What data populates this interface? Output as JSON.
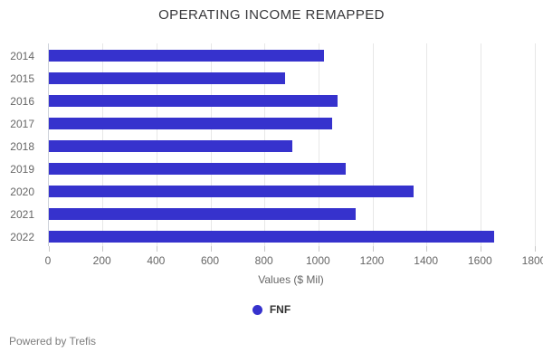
{
  "title": "OPERATING INCOME REMAPPED",
  "chart_data": {
    "type": "bar",
    "orientation": "horizontal",
    "categories": [
      "2014",
      "2015",
      "2016",
      "2017",
      "2018",
      "2019",
      "2020",
      "2021",
      "2022"
    ],
    "series": [
      {
        "name": "FNF",
        "values": [
          1020,
          875,
          1070,
          1050,
          900,
          1100,
          1350,
          1135,
          1650
        ]
      }
    ],
    "title": "OPERATING INCOME REMAPPED",
    "xlabel": "Values ($ Mil)",
    "ylabel": "",
    "xlim": [
      0,
      1800
    ],
    "xticks": [
      0,
      200,
      400,
      600,
      800,
      1000,
      1200,
      1400,
      1600,
      1800
    ],
    "grid": true,
    "legend_position": "bottom"
  },
  "legend": {
    "label": "FNF"
  },
  "footer": {
    "text": "Powered by Trefis"
  },
  "colors": {
    "bar": "#3632cd",
    "grid": "#e7e7e7",
    "axis_line": "#cdd2da",
    "tick": "#c9c9c9",
    "axis_text": "#666666",
    "title_text": "#37373a",
    "legend_text": "#333333",
    "footer_text": "#7d7d7d"
  }
}
